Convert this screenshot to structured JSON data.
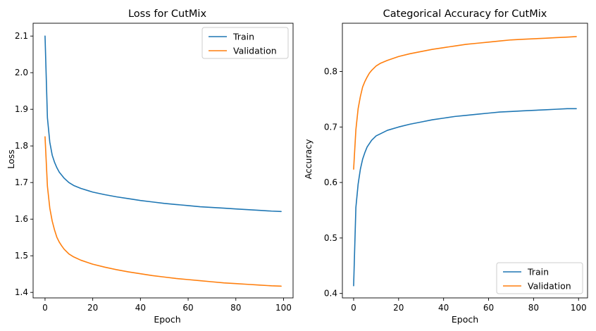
{
  "chart_data": [
    {
      "type": "line",
      "title": "Loss for CutMix",
      "xlabel": "Epoch",
      "ylabel": "Loss",
      "xlim": [
        -5,
        104
      ],
      "ylim": [
        1.385,
        2.135
      ],
      "xticks": [
        0,
        20,
        40,
        60,
        80,
        100
      ],
      "yticks": [
        1.4,
        1.5,
        1.6,
        1.7,
        1.8,
        1.9,
        2.0,
        2.1
      ],
      "xtick_labels": [
        "0",
        "20",
        "40",
        "60",
        "80",
        "100"
      ],
      "ytick_labels": [
        "1.4",
        "1.5",
        "1.6",
        "1.7",
        "1.8",
        "1.9",
        "2.0",
        "2.1"
      ],
      "legend": [
        "Train",
        "Validation"
      ],
      "legend_position": "upper right",
      "grid": false,
      "x": [
        0,
        1,
        2,
        3,
        4,
        5,
        6,
        7,
        8,
        10,
        12,
        15,
        20,
        25,
        30,
        35,
        40,
        45,
        50,
        55,
        60,
        65,
        70,
        75,
        80,
        85,
        90,
        95,
        99
      ],
      "series": [
        {
          "name": "Train",
          "color": "#1f77b4",
          "values": [
            2.1,
            1.877,
            1.81,
            1.775,
            1.755,
            1.74,
            1.728,
            1.72,
            1.712,
            1.7,
            1.692,
            1.684,
            1.674,
            1.667,
            1.661,
            1.656,
            1.651,
            1.647,
            1.643,
            1.64,
            1.637,
            1.634,
            1.632,
            1.63,
            1.628,
            1.626,
            1.624,
            1.622,
            1.621
          ]
        },
        {
          "name": "Validation",
          "color": "#ff7f0e",
          "values": [
            1.825,
            1.69,
            1.63,
            1.595,
            1.57,
            1.55,
            1.537,
            1.527,
            1.518,
            1.505,
            1.497,
            1.488,
            1.477,
            1.469,
            1.462,
            1.456,
            1.451,
            1.446,
            1.442,
            1.438,
            1.435,
            1.432,
            1.429,
            1.426,
            1.424,
            1.422,
            1.42,
            1.418,
            1.417
          ]
        }
      ]
    },
    {
      "type": "line",
      "title": "Categorical Accuracy for CutMix",
      "xlabel": "Epoch",
      "ylabel": "Accuracy",
      "xlim": [
        -5,
        104
      ],
      "ylim": [
        0.392,
        0.887
      ],
      "xticks": [
        0,
        20,
        40,
        60,
        80,
        100
      ],
      "yticks": [
        0.4,
        0.5,
        0.6,
        0.7,
        0.8
      ],
      "xtick_labels": [
        "0",
        "20",
        "40",
        "60",
        "80",
        "100"
      ],
      "ytick_labels": [
        "0.4",
        "0.5",
        "0.6",
        "0.7",
        "0.8"
      ],
      "legend": [
        "Train",
        "Validation"
      ],
      "legend_position": "lower right",
      "grid": false,
      "x": [
        0,
        1,
        2,
        3,
        4,
        5,
        6,
        7,
        8,
        10,
        12,
        15,
        20,
        25,
        30,
        35,
        40,
        45,
        50,
        55,
        60,
        65,
        70,
        75,
        80,
        85,
        90,
        95,
        99
      ],
      "series": [
        {
          "name": "Train",
          "color": "#1f77b4",
          "values": [
            0.414,
            0.555,
            0.597,
            0.624,
            0.642,
            0.654,
            0.664,
            0.67,
            0.676,
            0.684,
            0.688,
            0.694,
            0.7,
            0.705,
            0.709,
            0.713,
            0.716,
            0.719,
            0.721,
            0.723,
            0.725,
            0.727,
            0.728,
            0.729,
            0.73,
            0.731,
            0.732,
            0.733,
            0.733
          ]
        },
        {
          "name": "Validation",
          "color": "#ff7f0e",
          "values": [
            0.624,
            0.695,
            0.733,
            0.755,
            0.772,
            0.782,
            0.79,
            0.797,
            0.802,
            0.81,
            0.815,
            0.82,
            0.827,
            0.832,
            0.836,
            0.84,
            0.843,
            0.846,
            0.849,
            0.851,
            0.853,
            0.855,
            0.857,
            0.858,
            0.859,
            0.86,
            0.861,
            0.862,
            0.863
          ]
        }
      ]
    }
  ]
}
